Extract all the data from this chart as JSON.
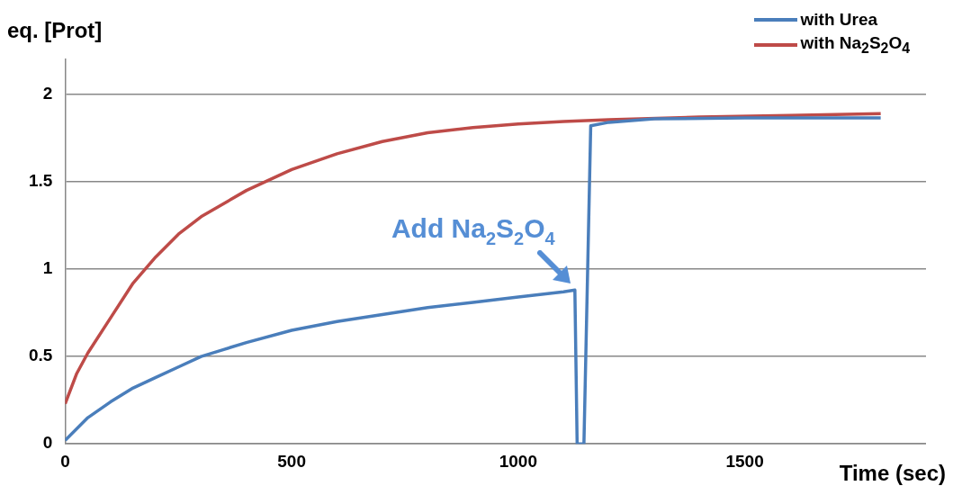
{
  "chart_data": {
    "type": "line",
    "xlabel": "Time (sec)",
    "ylabel": "eq. [Prot]",
    "xlim": [
      0,
      1900
    ],
    "xticks": [
      0,
      500,
      1000,
      1500
    ],
    "ylim": [
      0,
      2.2
    ],
    "yticks": [
      0,
      0.5,
      1,
      1.5,
      2
    ],
    "grid": "y",
    "legend": "top right",
    "marker": "none",
    "line_style": "solid",
    "annotations": [
      {
        "text": "Add Na$_{2}$S$_{2}$O$_{4}$",
        "x": 1125,
        "y": 0.88
      }
    ],
    "series": [
      {
        "name": "with Urea",
        "color": "#4a7ebb",
        "x": [
          0,
          50,
          100,
          150,
          200,
          250,
          300,
          350,
          400,
          500,
          600,
          700,
          800,
          900,
          1000,
          1100,
          1125,
          1130,
          1145,
          1160,
          1200,
          1300,
          1500,
          1800
        ],
        "values": [
          0.02,
          0.15,
          0.24,
          0.32,
          0.38,
          0.44,
          0.5,
          0.54,
          0.58,
          0.65,
          0.7,
          0.74,
          0.78,
          0.81,
          0.84,
          0.87,
          0.88,
          0,
          0,
          1.82,
          1.84,
          1.86,
          1.865,
          1.865
        ]
      },
      {
        "name": "with Na$_{2}$S$_{2}$O$_{4}$",
        "color": "#be4b48",
        "x": [
          0,
          25,
          50,
          100,
          150,
          200,
          250,
          300,
          400,
          500,
          600,
          700,
          800,
          900,
          1000,
          1100,
          1200,
          1400,
          1600,
          1800
        ],
        "values": [
          0.23,
          0.4,
          0.52,
          0.72,
          0.92,
          1.07,
          1.2,
          1.3,
          1.45,
          1.57,
          1.66,
          1.73,
          1.78,
          1.81,
          1.83,
          1.845,
          1.855,
          1.87,
          1.88,
          1.89
        ]
      }
    ]
  }
}
